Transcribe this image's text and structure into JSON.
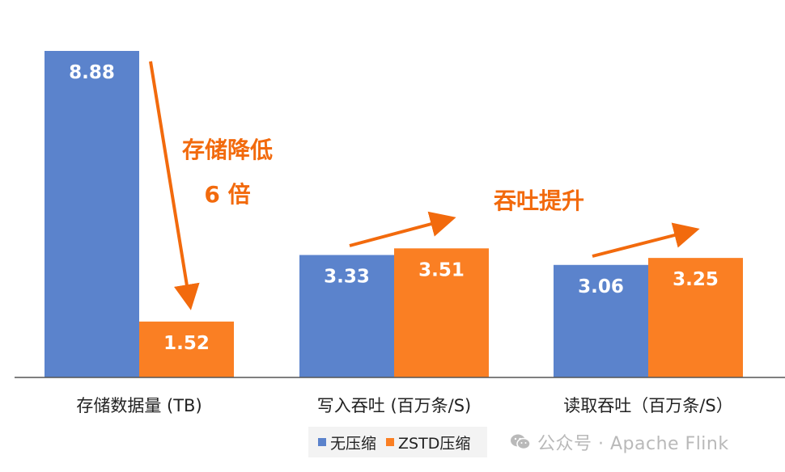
{
  "chart_data": {
    "type": "bar",
    "categories": [
      "存储数据量 (TB)",
      "写入吞吐 (百万条/S)",
      "读取吞吐（百万条/S）"
    ],
    "series": [
      {
        "name": "无压缩",
        "color": "#5b83cc",
        "values": [
          8.88,
          3.33,
          3.06
        ],
        "labels": [
          "8.88",
          "3.33",
          "3.06"
        ]
      },
      {
        "name": "ZSTD压缩",
        "color": "#fa7f23",
        "values": [
          1.52,
          3.51,
          3.25
        ],
        "labels": [
          "1.52",
          "3.51",
          "3.25"
        ]
      }
    ],
    "annotations": {
      "storage_line1": "存储降低",
      "storage_line2": "6 倍",
      "throughput": "吞吐提升"
    },
    "annotation_color": "#f26a0d",
    "grid": false,
    "legend_position": "bottom-center"
  },
  "watermark": {
    "icon": "wechat-icon",
    "text": "公众号 · Apache Flink"
  }
}
